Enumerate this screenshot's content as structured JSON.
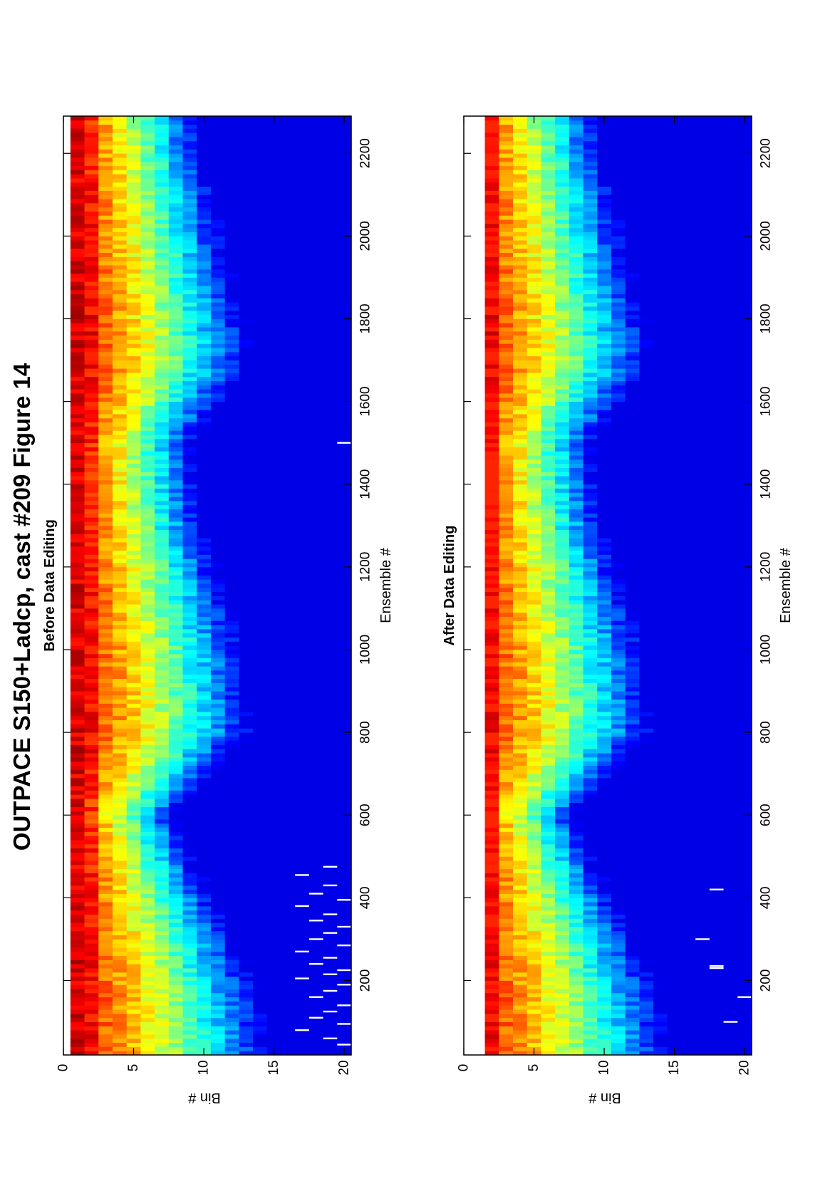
{
  "figure": {
    "title": "OUTPACE S150+Ladcp, cast #209  Figure 14",
    "orientation": "rotated-90-ccw"
  },
  "chart_data": [
    {
      "type": "heatmap",
      "title": "Before Data Editing",
      "xlabel": "Ensemble #",
      "ylabel": "Bin #",
      "xlim": [
        20,
        2290
      ],
      "ylim": [
        0,
        20.5
      ],
      "yreverse": true,
      "x_ticks": [
        200,
        400,
        600,
        800,
        1000,
        1200,
        1400,
        1600,
        1800,
        2000,
        2200
      ],
      "y_ticks": [
        0,
        5,
        10,
        15,
        20
      ],
      "bins": [
        1,
        20
      ],
      "colormap": "jet",
      "clim": [
        0,
        1
      ],
      "edited": false,
      "profile_knots": {
        "ensemble": [
          20,
          200,
          600,
          800,
          1000,
          1300,
          1500,
          1700,
          1900,
          2290
        ],
        "depth": [
          10.5,
          9.5,
          5.5,
          9.5,
          9,
          7,
          6.5,
          9.5,
          8.5,
          6.5
        ]
      },
      "gaps": [
        {
          "ensemble": 45,
          "bin": 20
        },
        {
          "ensemble": 60,
          "bin": 19
        },
        {
          "ensemble": 80,
          "bin": 17
        },
        {
          "ensemble": 95,
          "bin": 20
        },
        {
          "ensemble": 110,
          "bin": 18
        },
        {
          "ensemble": 125,
          "bin": 19
        },
        {
          "ensemble": 140,
          "bin": 20
        },
        {
          "ensemble": 160,
          "bin": 18
        },
        {
          "ensemble": 175,
          "bin": 19
        },
        {
          "ensemble": 190,
          "bin": 20
        },
        {
          "ensemble": 205,
          "bin": 17
        },
        {
          "ensemble": 215,
          "bin": 19
        },
        {
          "ensemble": 225,
          "bin": 20
        },
        {
          "ensemble": 240,
          "bin": 18
        },
        {
          "ensemble": 255,
          "bin": 19
        },
        {
          "ensemble": 270,
          "bin": 17
        },
        {
          "ensemble": 285,
          "bin": 20
        },
        {
          "ensemble": 300,
          "bin": 18
        },
        {
          "ensemble": 315,
          "bin": 19
        },
        {
          "ensemble": 330,
          "bin": 20
        },
        {
          "ensemble": 345,
          "bin": 18
        },
        {
          "ensemble": 360,
          "bin": 19
        },
        {
          "ensemble": 380,
          "bin": 17
        },
        {
          "ensemble": 395,
          "bin": 20
        },
        {
          "ensemble": 410,
          "bin": 18
        },
        {
          "ensemble": 430,
          "bin": 19
        },
        {
          "ensemble": 455,
          "bin": 17
        },
        {
          "ensemble": 475,
          "bin": 19
        },
        {
          "ensemble": 1500,
          "bin": 20
        }
      ]
    },
    {
      "type": "heatmap",
      "title": "After Data Editing",
      "xlabel": "Ensemble #",
      "ylabel": "Bin #",
      "xlim": [
        20,
        2290
      ],
      "ylim": [
        0,
        20.5
      ],
      "yreverse": true,
      "x_ticks": [
        200,
        400,
        600,
        800,
        1000,
        1200,
        1400,
        1600,
        1800,
        2000,
        2200
      ],
      "y_ticks": [
        0,
        5,
        10,
        15,
        20
      ],
      "bins": [
        2,
        20
      ],
      "colormap": "jet",
      "clim": [
        0,
        1
      ],
      "edited": true,
      "profile_knots": {
        "ensemble": [
          20,
          200,
          600,
          800,
          1000,
          1300,
          1500,
          1700,
          1900,
          2290
        ],
        "depth": [
          10.5,
          9.5,
          5.5,
          9.5,
          9,
          7,
          6.5,
          9.5,
          8.5,
          6.5
        ]
      },
      "gaps": [
        {
          "ensemble": 100,
          "bin": 19
        },
        {
          "ensemble": 160,
          "bin": 20
        },
        {
          "ensemble": 230,
          "bin": 18
        },
        {
          "ensemble": 235,
          "bin": 18
        },
        {
          "ensemble": 300,
          "bin": 17
        },
        {
          "ensemble": 420,
          "bin": 18
        }
      ]
    }
  ]
}
